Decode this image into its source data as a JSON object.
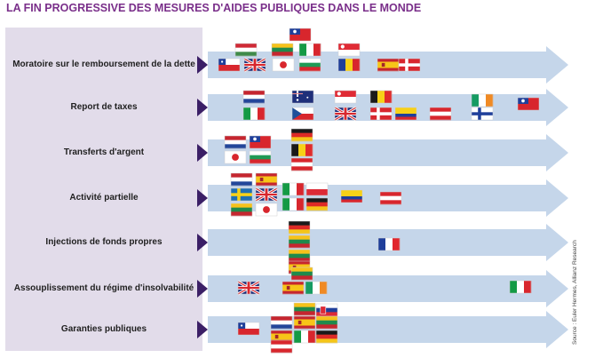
{
  "title": "LA FIN PROGRESSIVE DES MESURES D'AIDES PUBLIQUES DANS LE MONDE",
  "source": "Source : Euler Hermes, Allianz Research",
  "colors": {
    "title": "#7a2f8a",
    "label_panel": "#e2dcea",
    "arrow": "#c5d6ea",
    "pointer": "#3b1f66"
  },
  "chart_data": {
    "type": "timeline",
    "categories": [
      "Moratoire sur le remboursement de la dette",
      "Report de taxes",
      "Transferts d'argent",
      "Activité partielle",
      "Injections de fonds propres",
      "Assouplissement du régime d'insolvabilité",
      "Garanties publiques"
    ],
    "rows": [
      {
        "flags": [
          "chile",
          "uk",
          "hungary",
          "japan",
          "lithuania",
          "taiwan",
          "italy",
          "bulgaria",
          "singapore",
          "romania",
          "spain",
          "denmark"
        ]
      },
      {
        "flags": [
          "netherlands",
          "italy",
          "australia",
          "czech",
          "singapore",
          "uk",
          "belgium",
          "denmark",
          "colombia",
          "austria",
          "ireland",
          "finland",
          "taiwan"
        ]
      },
      {
        "flags": [
          "netherlands",
          "japan",
          "taiwan",
          "bulgaria",
          "germany",
          "belgium",
          "austria"
        ]
      },
      {
        "flags": [
          "netherlands",
          "sweden",
          "lithuania",
          "spain",
          "uk",
          "japan",
          "italy",
          "italy",
          "poland",
          "germany",
          "colombia",
          "austria"
        ]
      },
      {
        "flags": [
          "germany",
          "lithuania",
          "lithuania",
          "spain",
          "france"
        ]
      },
      {
        "flags": [
          "uk",
          "lithuania",
          "spain",
          "ireland",
          "italy"
        ]
      },
      {
        "flags": [
          "chile",
          "lithuania",
          "netherlands",
          "spain",
          "spain",
          "slovakia",
          "lithuania",
          "germany",
          "italy",
          "austria"
        ]
      }
    ]
  }
}
